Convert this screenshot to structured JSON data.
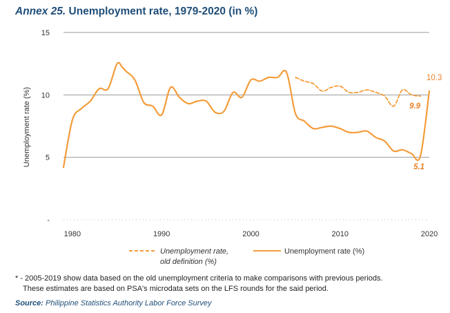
{
  "title": {
    "prefix": "Annex 25.",
    "text": " Unemployment rate, 1979-2020 (in %)"
  },
  "footnote": {
    "line1": "* - 2005-2019 show data based on the old unemployment criteria to make comparisons with previous periods.",
    "line2": "These estimates are based on PSA's microdata sets on the LFS rounds for the said period."
  },
  "source": {
    "label": "Source:",
    "text": " Philippine Statistics Authority Labor Force Survey"
  },
  "colors": {
    "series": "#f39c3a",
    "label": "#e8822a",
    "grid": "#9a9a9a",
    "title": "#1f4e79"
  },
  "chart_data": {
    "type": "line",
    "title": "Annex 25. Unemployment rate, 1979-2020 (in %)",
    "ylabel": "Unemployment rate (%)",
    "xlabel": "",
    "xlim": [
      1979,
      2020
    ],
    "ylim": [
      0,
      15
    ],
    "yticks": [
      {
        "value": 0,
        "label": "-"
      },
      {
        "value": 5,
        "label": "5"
      },
      {
        "value": 10,
        "label": "10"
      },
      {
        "value": 15,
        "label": "15"
      }
    ],
    "xticks": [
      1980,
      1990,
      2000,
      2010,
      2020
    ],
    "grid": "horizontal",
    "legend_position": "bottom",
    "series": [
      {
        "name": "Unemployment rate (%)",
        "style": "solid",
        "x": [
          1979,
          1980,
          1981,
          1982,
          1983,
          1984,
          1985,
          1985.6,
          1986,
          1987,
          1988,
          1989,
          1990,
          1991,
          1992,
          1993,
          1994,
          1995,
          1996,
          1997,
          1998,
          1999,
          2000,
          2001,
          2002,
          2003,
          2004,
          2005,
          2006,
          2007,
          2008,
          2009,
          2010,
          2011,
          2012,
          2013,
          2014,
          2015,
          2016,
          2017,
          2018,
          2019,
          2020
        ],
        "values": [
          4.2,
          8.0,
          8.9,
          9.5,
          10.5,
          10.5,
          12.5,
          12.2,
          11.9,
          11.2,
          9.4,
          9.1,
          8.4,
          10.6,
          9.8,
          9.3,
          9.5,
          9.5,
          8.6,
          8.7,
          10.2,
          9.8,
          11.2,
          11.1,
          11.4,
          11.4,
          11.8,
          8.5,
          7.9,
          7.3,
          7.4,
          7.5,
          7.3,
          7.0,
          7.0,
          7.1,
          6.6,
          6.3,
          5.5,
          5.6,
          5.3,
          5.1,
          10.3
        ]
      },
      {
        "name": "Unemployment rate, old definition (%)",
        "legend_lines": [
          "Unemployment rate,",
          "old definition (%)"
        ],
        "style": "dashed",
        "x": [
          2005,
          2006,
          2007,
          2008,
          2009,
          2010,
          2011,
          2012,
          2013,
          2014,
          2015,
          2016,
          2017,
          2018,
          2019
        ],
        "values": [
          11.4,
          11.1,
          10.9,
          10.3,
          10.6,
          10.7,
          10.2,
          10.2,
          10.4,
          10.2,
          9.9,
          9.1,
          10.4,
          10.0,
          9.9
        ]
      }
    ],
    "annotations": [
      {
        "x": 2020,
        "y": 10.3,
        "text": "10.3"
      },
      {
        "x": 2019,
        "y": 9.9,
        "text": "9.9"
      },
      {
        "x": 2019,
        "y": 5.1,
        "text": "5.1"
      }
    ]
  }
}
